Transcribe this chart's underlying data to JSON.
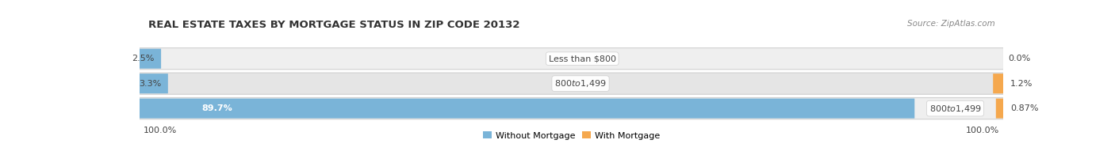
{
  "title": "REAL ESTATE TAXES BY MORTGAGE STATUS IN ZIP CODE 20132",
  "source": "Source: ZipAtlas.com",
  "rows": [
    {
      "without_pct": 2.5,
      "with_pct": 0.0,
      "label": "Less than $800"
    },
    {
      "without_pct": 3.3,
      "with_pct": 1.2,
      "label": "$800 to $1,499"
    },
    {
      "without_pct": 89.7,
      "with_pct": 0.87,
      "label": "$800 to $1,499"
    }
  ],
  "without_color": "#7ab4d8",
  "with_color": "#f5a84e",
  "row_bg_colors": [
    "#efefef",
    "#e5e5e5",
    "#efefef"
  ],
  "legend_without": "Without Mortgage",
  "legend_with": "With Mortgage",
  "left_label": "100.0%",
  "right_label": "100.0%",
  "title_fontsize": 9.5,
  "label_fontsize": 8.0,
  "source_fontsize": 7.5
}
